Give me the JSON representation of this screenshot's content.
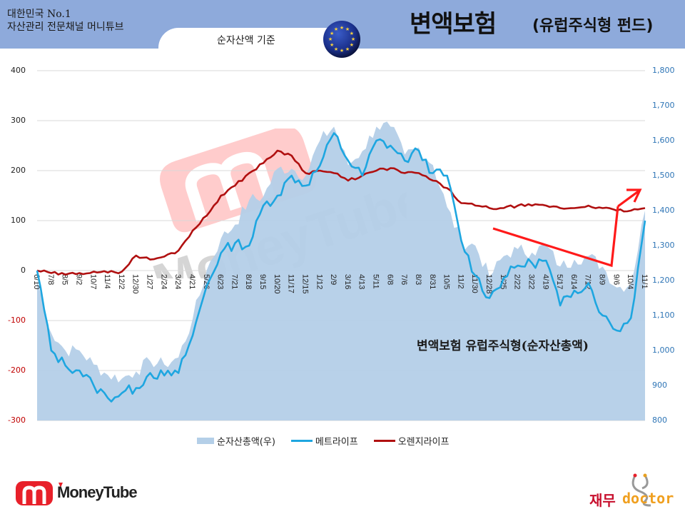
{
  "header": {
    "brand_line1": "대한민국 No.1",
    "brand_line2": "자산관리 전문채널 머니튜브",
    "subtitle_tab": "순자산액 기준",
    "title_main": "변액보험",
    "title_sub": "(유럽주식형 펀드)",
    "flag_icon": "eu-flag-icon"
  },
  "annotation": "변액보험 유럽주식형(순자산총액)",
  "legend": {
    "area_label": "순자산총액(우)",
    "line1_label": "메트라이프",
    "line2_label": "오렌지라이프"
  },
  "footer": {
    "left_logo_text": "MoneyTube",
    "right_logo_korean": "재무",
    "right_logo_english": "doctor"
  },
  "colors": {
    "header_bg": "#8eaadb",
    "area_fill": "#b4cfe8",
    "metlife_line": "#1ea6e0",
    "orange_line": "#b01010",
    "arrow": "#ff1a1a",
    "right_axis": "#2e75b6",
    "negative_tick": "#c00000"
  },
  "chart_data": {
    "type": "line",
    "title": "변액보험 유럽주식형(순자산총액)",
    "subtitle": "순자산액 기준",
    "xlabel": "",
    "ylabel": "",
    "y_left": {
      "ticks": [
        "400",
        "300",
        "200",
        "100",
        "0",
        "-100",
        "-200",
        "-300"
      ],
      "range": [
        -300,
        400
      ]
    },
    "y_right": {
      "ticks": [
        "1,800",
        "1,700",
        "1,600",
        "1,500",
        "1,400",
        "1,300",
        "1,200",
        "1,100",
        "1,000",
        "900",
        "800"
      ],
      "range": [
        800,
        1800
      ]
    },
    "grid": true,
    "legend_position": "bottom",
    "categories": [
      "6/10",
      "7/8",
      "8/5",
      "9/2",
      "10/7",
      "11/4",
      "12/2",
      "12/30",
      "1/27",
      "2/24",
      "3/24",
      "4/21",
      "5/26",
      "6/23",
      "7/21",
      "8/18",
      "9/15",
      "10/20",
      "11/17",
      "12/15",
      "1/12",
      "2/9",
      "3/16",
      "4/13",
      "5/11",
      "6/8",
      "7/6",
      "8/3",
      "8/31",
      "10/5",
      "11/2",
      "11/30",
      "12/28",
      "1/25",
      "2/22",
      "3/22",
      "4/19",
      "5/17",
      "6/14",
      "7/12",
      "8/9",
      "9/6",
      "10/4",
      "11/1"
    ],
    "series": [
      {
        "name": "순자산총액(우)",
        "axis": "right",
        "type": "area",
        "values": [
          1200,
          1050,
          1000,
          1000,
          960,
          930,
          920,
          940,
          970,
          960,
          980,
          1090,
          1230,
          1320,
          1360,
          1430,
          1440,
          1520,
          1520,
          1500,
          1600,
          1640,
          1530,
          1570,
          1640,
          1640,
          1560,
          1580,
          1530,
          1410,
          1310,
          1300,
          1210,
          1270,
          1290,
          1280,
          1300,
          1240,
          1260,
          1270,
          1240,
          1180,
          1190,
          1400
        ]
      },
      {
        "name": "메트라이프",
        "axis": "left",
        "type": "line",
        "values": [
          0,
          -160,
          -190,
          -200,
          -230,
          -255,
          -245,
          -235,
          -205,
          -210,
          -205,
          -130,
          -30,
          35,
          55,
          50,
          130,
          150,
          190,
          170,
          210,
          275,
          220,
          190,
          260,
          250,
          220,
          240,
          195,
          190,
          60,
          -10,
          -55,
          -15,
          10,
          15,
          20,
          -70,
          -40,
          -25,
          -90,
          -120,
          -95,
          100
        ]
      },
      {
        "name": "오렌지라이프",
        "axis": "left",
        "type": "line",
        "values": [
          0,
          -5,
          -8,
          -5,
          -2,
          -4,
          -2,
          30,
          22,
          28,
          40,
          80,
          110,
          150,
          170,
          195,
          215,
          240,
          230,
          195,
          200,
          195,
          180,
          190,
          200,
          205,
          195,
          195,
          180,
          165,
          135,
          130,
          125,
          125,
          130,
          130,
          130,
          125,
          125,
          130,
          125,
          120,
          120,
          125
        ]
      }
    ],
    "annotations": [
      {
        "type": "arrow",
        "color": "#ff1a1a",
        "from": "11/30",
        "via": "9/6",
        "to": "11/1",
        "description": "declining trend then sharp rebound"
      }
    ]
  }
}
